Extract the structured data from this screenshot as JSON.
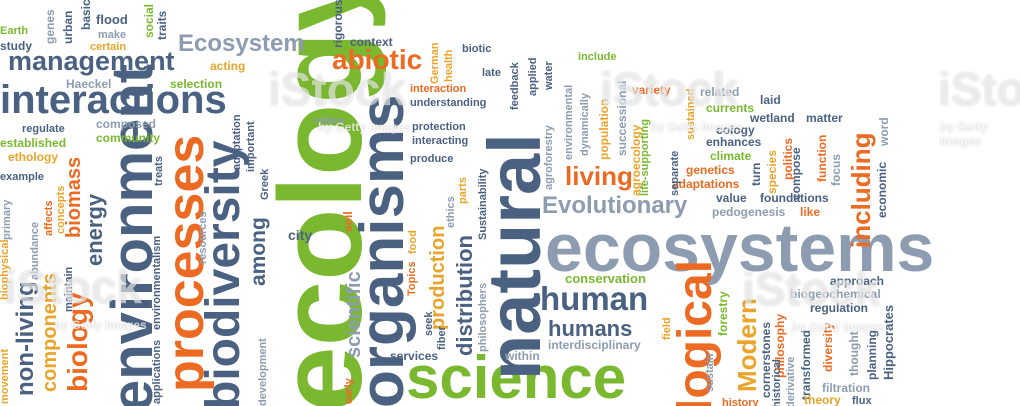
{
  "words": {
    "ecosystems": "ecosystems",
    "ecology": "ecology",
    "science": "science",
    "natural": "natural",
    "organisms": "organisms",
    "processes": "processes",
    "biodiversity": "biodiversity",
    "environment": "environment",
    "interactions": "interactions",
    "management": "management",
    "ecosystem": "Ecosystem",
    "abiotic": "abiotic",
    "human": "human",
    "humans": "humans",
    "evolutionary": "Evolutionary",
    "living": "living",
    "including": "including",
    "logical": "logical",
    "modern": "Modern",
    "biology": "biology",
    "components": "components",
    "nonliving": "non-living",
    "energy": "energy",
    "biomass": "biomass",
    "distribution": "distribution",
    "production": "production",
    "scientific": "scientific",
    "among": "among",
    "city": "city",
    "soil": "soil",
    "conservation": "conservation",
    "interdisciplinary": "interdisciplinary",
    "within": "within",
    "services": "services",
    "fiber": "fiber",
    "seek": "seek",
    "topics": "Topics",
    "food": "food",
    "field": "field",
    "sustain": "sustain",
    "forestry": "forestry",
    "cornerstones": "cornerstones",
    "philosophy": "philosophy",
    "transformed": "transformed",
    "diversity": "diversity",
    "thought": "thought",
    "planning": "planning",
    "hippocrates": "Hippocrates",
    "filtration": "filtration",
    "flux": "flux",
    "theory": "theory",
    "history": "history",
    "approach": "approach",
    "biogeochemical": "biogeochemical",
    "regulation": "regulation",
    "flood": "flood",
    "social": "social",
    "traits": "traits",
    "basic": "basic",
    "urban": "urban",
    "genes": "genes",
    "earth": "Earth",
    "study": "study",
    "make": "make",
    "certain": "certain",
    "haeckel": "Haeckel",
    "selection": "selection",
    "acting": "acting",
    "context": "context",
    "rigorous": "rigorous",
    "german": "German",
    "health": "health",
    "biotic": "biotic",
    "late": "late",
    "feedback": "feedback",
    "applied": "applied",
    "water": "water",
    "include": "include",
    "interaction": "interaction",
    "understanding": "understanding",
    "protection": "protection",
    "interacting": "interacting",
    "produce": "produce",
    "refers": "refers",
    "composed": "composed",
    "community": "community",
    "regulate": "regulate",
    "established": "established",
    "ethology": "ethology",
    "example": "example",
    "affects": "affects",
    "concepts": "concepts",
    "treats": "treats",
    "adaptation": "adaptation",
    "important": "important",
    "greek": "Greek",
    "variety": "variety",
    "related": "related",
    "laid": "laid",
    "currents": "currents",
    "wetland": "wetland",
    "matter": "matter",
    "cology": "cology",
    "enhances": "enhances",
    "climate": "climate",
    "genetics": "genetics",
    "adaptations": "adaptations",
    "value": "value",
    "foundations": "foundations",
    "pedogenesis": "pedogenesis",
    "like": "like",
    "economic": "economic",
    "word": "word",
    "focus": "focus",
    "function": "function",
    "compose": "compose",
    "politics": "politics",
    "species": "species",
    "turn": "turn",
    "population": "population",
    "successional": "successional",
    "agroecology": "agroecology",
    "lifesupporting": "life-supporting",
    "separate": "separate",
    "sustained": "sustained",
    "dynamically": "dynamically",
    "environmental": "environmental",
    "agroforestry": "agroforestry",
    "ethics": "ethics",
    "parts": "parts",
    "sustainability": "Sustainability",
    "philosophers": "philosophers",
    "resources": "resources",
    "environmentalism": "environmentalism",
    "applications": "applications",
    "development": "development",
    "abundance": "abundance",
    "maintain": "maintain",
    "biophysical": "biophysical",
    "primary": "primary",
    "movement": "movement",
    "early": "early",
    "derivative": "derivative",
    "historical": "historical"
  },
  "watermark": {
    "brand": "iStock",
    "byline": "by Getty Images"
  },
  "colors": {
    "blue": "#4a6181",
    "gray": "#8d9cb0",
    "green": "#7ab92f",
    "orange": "#ec6a22",
    "yellow": "#e9a42b"
  }
}
